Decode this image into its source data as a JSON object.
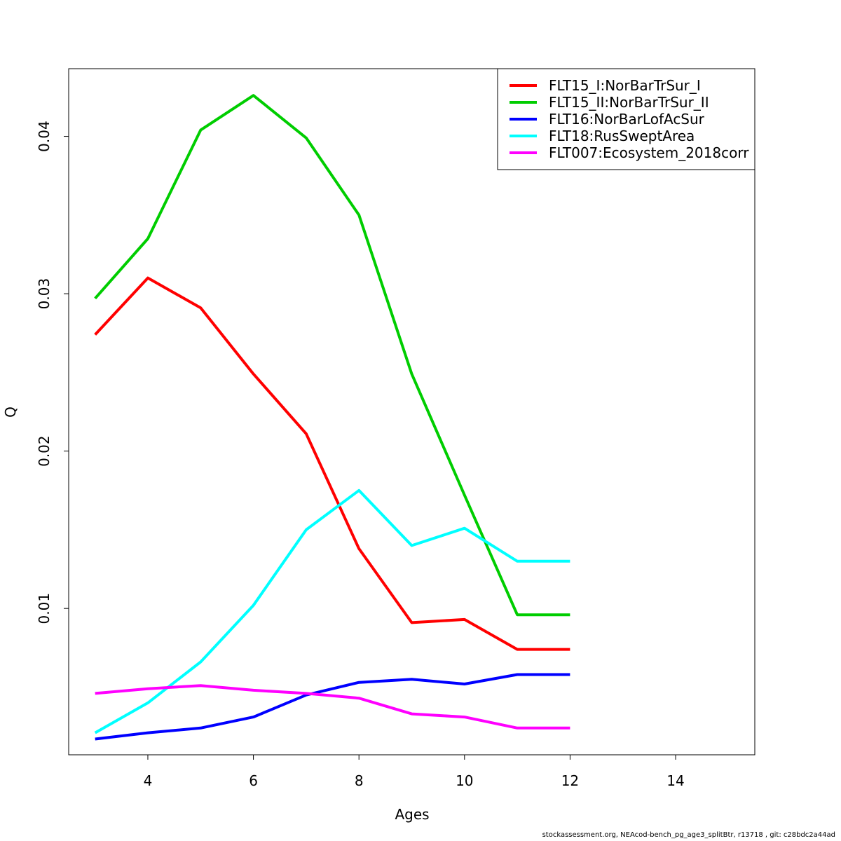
{
  "chart_data": {
    "type": "line",
    "xlabel": "Ages",
    "ylabel": "Q",
    "xlim": [
      2.5,
      15.5
    ],
    "ylim": [
      0.0007,
      0.0443
    ],
    "x_ticks": [
      4,
      6,
      8,
      10,
      12,
      14
    ],
    "y_ticks": [
      0.01,
      0.02,
      0.03,
      0.04
    ],
    "y_tick_labels": [
      "0.01",
      "0.02",
      "0.03",
      "0.04"
    ],
    "grid": false,
    "legend_position": "top-right",
    "x": [
      3,
      4,
      5,
      6,
      7,
      8,
      9,
      10,
      11,
      12
    ],
    "series": [
      {
        "name": "FLT15_I:NorBarTrSur_I",
        "color": "#ff0000",
        "values": [
          0.0274,
          0.031,
          0.0291,
          0.0249,
          0.0211,
          0.0138,
          0.0091,
          0.0093,
          0.0074,
          0.0074
        ]
      },
      {
        "name": "FLT15_II:NorBarTrSur_II",
        "color": "#00cd00",
        "values": [
          0.0297,
          0.0335,
          0.0404,
          0.0426,
          0.0399,
          0.035,
          0.0249,
          0.0172,
          0.0096,
          0.0096
        ]
      },
      {
        "name": "FLT16:NorBarLofAcSur",
        "color": "#0000ff",
        "values": [
          0.0017,
          0.0021,
          0.0024,
          0.0031,
          0.0045,
          0.0053,
          0.0055,
          0.0052,
          0.0058,
          0.0058
        ]
      },
      {
        "name": "FLT18:RusSweptArea",
        "color": "#00ffff",
        "values": [
          0.0021,
          0.004,
          0.0066,
          0.0102,
          0.015,
          0.0175,
          0.014,
          0.0151,
          0.013,
          0.013
        ]
      },
      {
        "name": "FLT007:Ecosystem_2018corr",
        "color": "#ff00ff",
        "values": [
          0.0046,
          0.0049,
          0.0051,
          0.0048,
          0.0046,
          0.0043,
          0.0033,
          0.0031,
          0.0024,
          0.0024
        ]
      }
    ]
  },
  "footer": {
    "text": "stockassessment.org, NEAcod-bench_pg_age3_splitBtr, r13718 , git: c28bdc2a44ad"
  }
}
